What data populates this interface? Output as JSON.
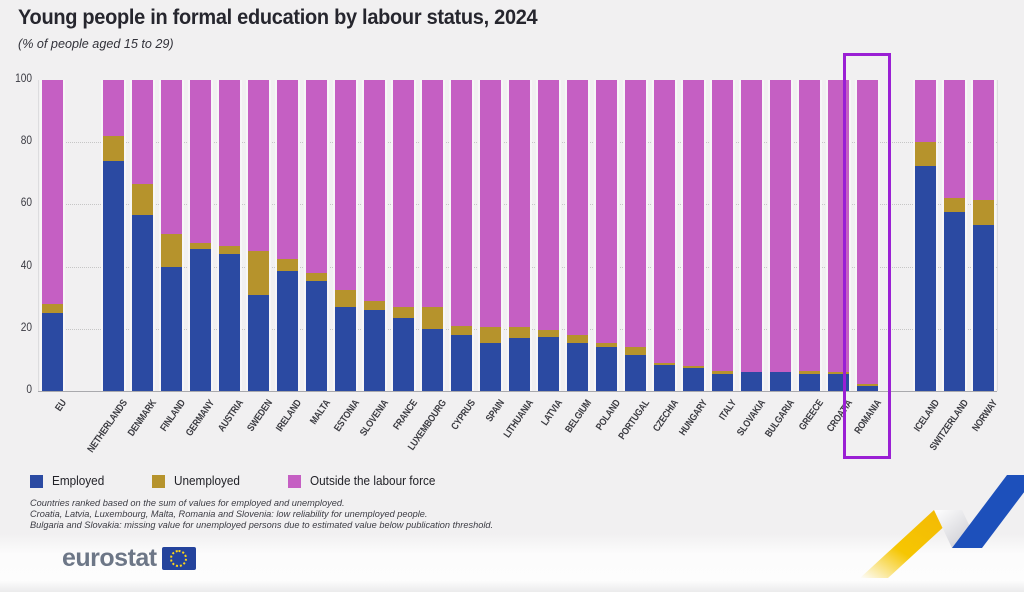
{
  "header": {
    "title": "Young people in formal education by labour status, 2024",
    "subtitle": "(% of people aged 15 to 29)"
  },
  "legend": {
    "items": [
      {
        "label": "Employed",
        "color": "#2b4aa2"
      },
      {
        "label": "Unemployed",
        "color": "#b6932c"
      },
      {
        "label": "Outside the labour force",
        "color": "#c55fc3"
      }
    ]
  },
  "footnotes": [
    "Countries ranked based on the sum of values for employed and unemployed.",
    "Croatia, Latvia, Luxembourg, Malta, Romania and Slovenia: low reliability for unemployed people.",
    "Bulgaria and Slovakia: missing value for unemployed persons due to estimated value below publication threshold."
  ],
  "branding": {
    "logo_text": "eurostat"
  },
  "highlight": {
    "country": "ROMANIA",
    "box_color": "#9a1fd4"
  },
  "chart_data": {
    "type": "bar",
    "stacked": true,
    "title": "Young people in formal education by labour status, 2024",
    "subtitle": "(% of people aged 15 to 29)",
    "ylabel": "% of people aged 15 to 29",
    "ylim": [
      0,
      100
    ],
    "yticks": [
      0,
      20,
      40,
      60,
      80,
      100
    ],
    "grid": "horizontal-dotted",
    "legend_position": "bottom-left",
    "series_order": [
      "Employed",
      "Unemployed",
      "Outside the labour force"
    ],
    "colors": {
      "Employed": "#2b4aa2",
      "Unemployed": "#b6932c",
      "Outside the labour force": "#c55fc3"
    },
    "bars": [
      {
        "label": "EU",
        "group": "eu",
        "employed": 25,
        "unemployed": 3,
        "outside": 72
      },
      {
        "label": "NETHERLANDS",
        "group": "ms",
        "employed": 74,
        "unemployed": 8,
        "outside": 18
      },
      {
        "label": "DENMARK",
        "group": "ms",
        "employed": 56.5,
        "unemployed": 10,
        "outside": 33.5
      },
      {
        "label": "FINLAND",
        "group": "ms",
        "employed": 40,
        "unemployed": 10.5,
        "outside": 49.5
      },
      {
        "label": "GERMANY",
        "group": "ms",
        "employed": 45.5,
        "unemployed": 2,
        "outside": 52.5
      },
      {
        "label": "AUSTRIA",
        "group": "ms",
        "employed": 44,
        "unemployed": 2.5,
        "outside": 53.5
      },
      {
        "label": "SWEDEN",
        "group": "ms",
        "employed": 31,
        "unemployed": 14,
        "outside": 55
      },
      {
        "label": "IRELAND",
        "group": "ms",
        "employed": 38.5,
        "unemployed": 4,
        "outside": 57.5
      },
      {
        "label": "MALTA",
        "group": "ms",
        "employed": 35.5,
        "unemployed": 2.5,
        "outside": 62
      },
      {
        "label": "ESTONIA",
        "group": "ms",
        "employed": 27,
        "unemployed": 5.5,
        "outside": 67.5
      },
      {
        "label": "SLOVENIA",
        "group": "ms",
        "employed": 26,
        "unemployed": 3,
        "outside": 71
      },
      {
        "label": "FRANCE",
        "group": "ms",
        "employed": 23.5,
        "unemployed": 3.5,
        "outside": 73
      },
      {
        "label": "LUXEMBOURG",
        "group": "ms",
        "employed": 20,
        "unemployed": 7,
        "outside": 73
      },
      {
        "label": "CYPRUS",
        "group": "ms",
        "employed": 18,
        "unemployed": 3,
        "outside": 79
      },
      {
        "label": "SPAIN",
        "group": "ms",
        "employed": 15.5,
        "unemployed": 5,
        "outside": 79.5
      },
      {
        "label": "LITHUANIA",
        "group": "ms",
        "employed": 17,
        "unemployed": 3.5,
        "outside": 79.5
      },
      {
        "label": "LATVIA",
        "group": "ms",
        "employed": 17.5,
        "unemployed": 2,
        "outside": 80.5
      },
      {
        "label": "BELGIUM",
        "group": "ms",
        "employed": 15.5,
        "unemployed": 2.5,
        "outside": 82
      },
      {
        "label": "POLAND",
        "group": "ms",
        "employed": 14,
        "unemployed": 1.5,
        "outside": 84.5
      },
      {
        "label": "PORTUGAL",
        "group": "ms",
        "employed": 11.5,
        "unemployed": 2.5,
        "outside": 86
      },
      {
        "label": "CZECHIA",
        "group": "ms",
        "employed": 8.5,
        "unemployed": 0.6,
        "outside": 90.9
      },
      {
        "label": "HUNGARY",
        "group": "ms",
        "employed": 7.5,
        "unemployed": 0.6,
        "outside": 91.9
      },
      {
        "label": "ITALY",
        "group": "ms",
        "employed": 5.5,
        "unemployed": 1,
        "outside": 93.5
      },
      {
        "label": "SLOVAKIA",
        "group": "ms",
        "employed": 6,
        "unemployed": null,
        "outside": 94
      },
      {
        "label": "BULGARIA",
        "group": "ms",
        "employed": 6,
        "unemployed": null,
        "outside": 94
      },
      {
        "label": "GREECE",
        "group": "ms",
        "employed": 5.5,
        "unemployed": 0.8,
        "outside": 93.7
      },
      {
        "label": "CROATIA",
        "group": "ms",
        "employed": 5.5,
        "unemployed": 0.7,
        "outside": 93.8
      },
      {
        "label": "ROMANIA",
        "group": "ms",
        "employed": 1.5,
        "unemployed": 0.8,
        "outside": 97.7
      },
      {
        "label": "ICELAND",
        "group": "efta",
        "employed": 72.5,
        "unemployed": 7.5,
        "outside": 20
      },
      {
        "label": "SWITZERLAND",
        "group": "efta",
        "employed": 57.5,
        "unemployed": 4.5,
        "outside": 38
      },
      {
        "label": "NORWAY",
        "group": "efta",
        "employed": 53.5,
        "unemployed": 8,
        "outside": 38.5
      }
    ]
  }
}
